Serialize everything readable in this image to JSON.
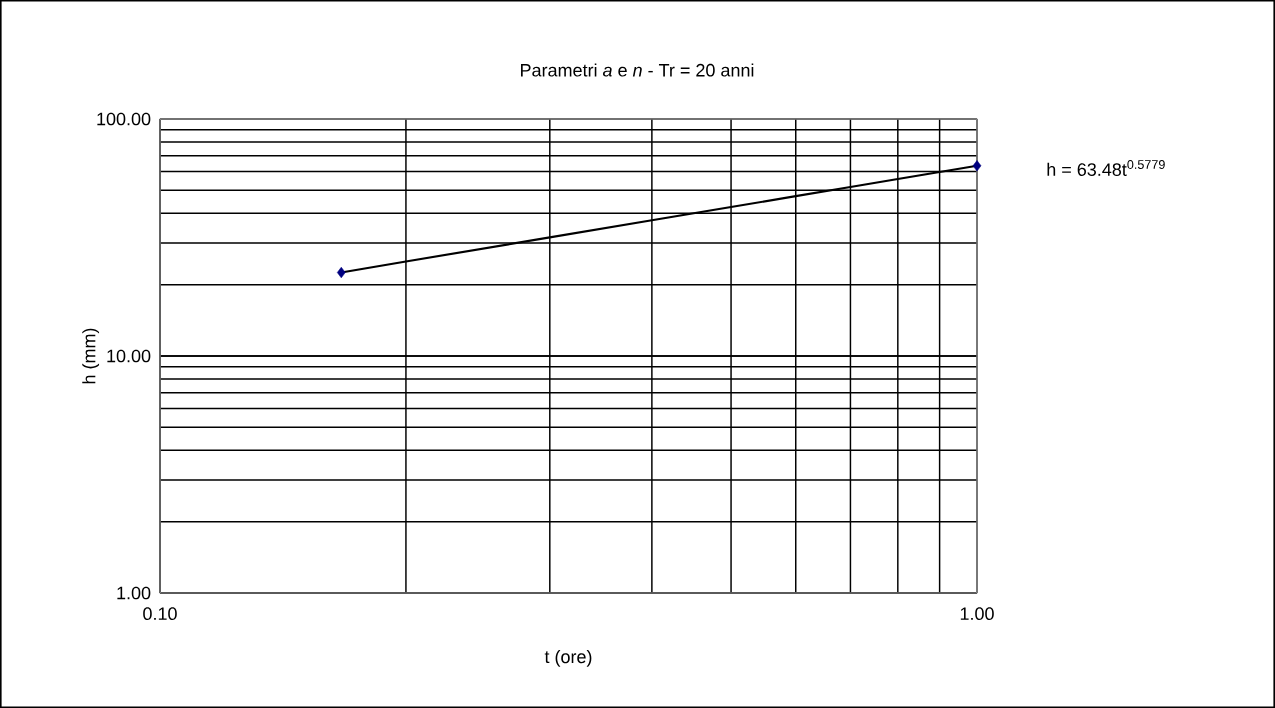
{
  "chart_data": {
    "type": "scatter",
    "title": "Parametri *a* e *n* - Tr = 20 anni",
    "xlabel": "t (ore)",
    "ylabel": "h (mm)",
    "annotations": [
      "h = 63.48t$^{0.5779}$"
    ],
    "log": "xy",
    "grid": true,
    "xlim": [
      0.1,
      1.0
    ],
    "ylim": [
      1,
      100
    ],
    "xticks": [
      {
        "value": 0.1,
        "label": "0.10"
      },
      {
        "value": 1.0,
        "label": "1.00"
      }
    ],
    "yticks": [
      {
        "value": 1,
        "label": "1.00"
      },
      {
        "value": 10,
        "label": "10.00"
      },
      {
        "value": 100,
        "label": "100.00"
      }
    ],
    "series": [
      {
        "type": "line",
        "color": "#000000",
        "marker": "none",
        "x": [
          0.1667,
          0.2,
          0.3,
          0.4,
          0.5,
          0.6,
          0.7,
          0.8,
          0.9,
          1.0
        ],
        "values": [
          22.5,
          25.04,
          31.66,
          37.38,
          42.53,
          47.26,
          51.65,
          55.8,
          59.73,
          63.48
        ]
      },
      {
        "type": "scatter",
        "color": "#000080",
        "marker": "diamond",
        "x": [
          0.1667,
          1.0
        ],
        "values": [
          22.5,
          63.48
        ]
      }
    ]
  }
}
